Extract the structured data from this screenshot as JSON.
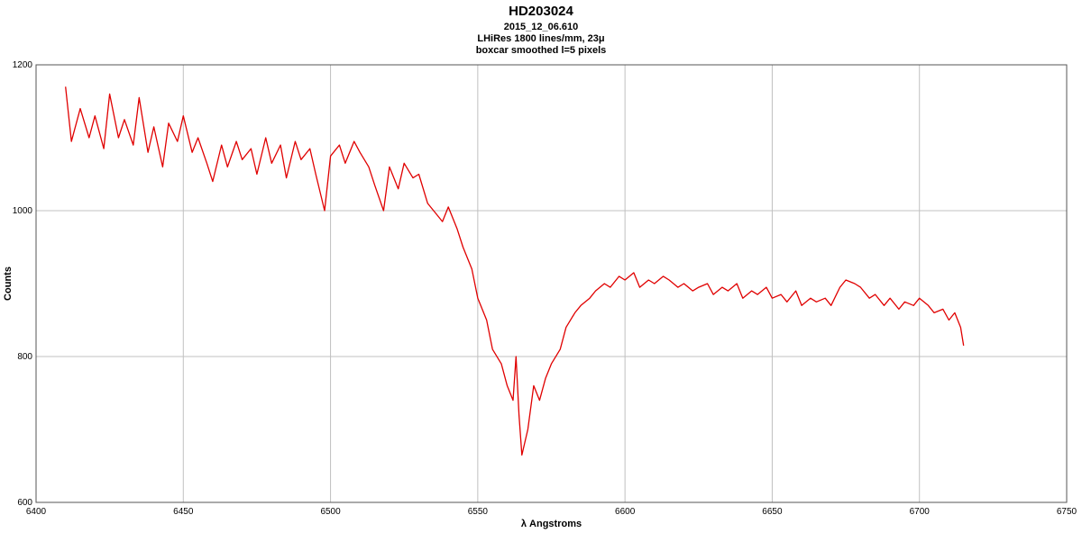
{
  "chart_data": {
    "type": "line",
    "title": "HD203024",
    "subtitle_lines": [
      "2015_12_06.610",
      "LHiRes 1800 lines/mm, 23μ",
      "boxcar smoothed l=5 pixels"
    ],
    "xlabel": "λ Angstroms",
    "ylabel": "Counts",
    "xlim": [
      6400,
      6750
    ],
    "ylim": [
      600,
      1200
    ],
    "xticks": [
      6400,
      6450,
      6500,
      6550,
      6600,
      6650,
      6700,
      6750
    ],
    "yticks": [
      600,
      800,
      1000,
      1200
    ],
    "grid": true,
    "line_color": "#e00000",
    "series": [
      {
        "name": "",
        "x": [
          6410,
          6412,
          6415,
          6418,
          6420,
          6423,
          6425,
          6428,
          6430,
          6433,
          6435,
          6438,
          6440,
          6443,
          6445,
          6448,
          6450,
          6453,
          6455,
          6458,
          6460,
          6463,
          6465,
          6468,
          6470,
          6473,
          6475,
          6478,
          6480,
          6483,
          6485,
          6488,
          6490,
          6493,
          6495,
          6498,
          6500,
          6503,
          6505,
          6508,
          6510,
          6513,
          6515,
          6518,
          6520,
          6523,
          6525,
          6528,
          6530,
          6533,
          6535,
          6538,
          6540,
          6543,
          6545,
          6548,
          6550,
          6553,
          6555,
          6558,
          6560,
          6562,
          6563,
          6564,
          6565,
          6567,
          6569,
          6571,
          6573,
          6575,
          6578,
          6580,
          6583,
          6585,
          6588,
          6590,
          6593,
          6595,
          6598,
          6600,
          6603,
          6605,
          6608,
          6610,
          6613,
          6615,
          6618,
          6620,
          6623,
          6625,
          6628,
          6630,
          6633,
          6635,
          6638,
          6640,
          6643,
          6645,
          6648,
          6650,
          6653,
          6655,
          6658,
          6660,
          6663,
          6665,
          6668,
          6670,
          6673,
          6675,
          6678,
          6680,
          6683,
          6685,
          6688,
          6690,
          6693,
          6695,
          6698,
          6700,
          6703,
          6705,
          6708,
          6710,
          6712,
          6714,
          6715
        ],
        "y": [
          1170,
          1095,
          1140,
          1100,
          1130,
          1085,
          1160,
          1100,
          1125,
          1090,
          1155,
          1080,
          1115,
          1060,
          1120,
          1095,
          1130,
          1080,
          1100,
          1065,
          1040,
          1090,
          1060,
          1095,
          1070,
          1085,
          1050,
          1100,
          1065,
          1090,
          1045,
          1095,
          1070,
          1085,
          1050,
          1000,
          1075,
          1090,
          1065,
          1095,
          1080,
          1060,
          1035,
          1000,
          1060,
          1030,
          1065,
          1045,
          1050,
          1010,
          1000,
          985,
          1005,
          975,
          950,
          920,
          880,
          850,
          810,
          790,
          760,
          740,
          800,
          720,
          665,
          700,
          760,
          740,
          770,
          790,
          810,
          840,
          860,
          870,
          880,
          890,
          900,
          895,
          910,
          905,
          915,
          895,
          905,
          900,
          910,
          905,
          895,
          900,
          890,
          895,
          900,
          885,
          895,
          890,
          900,
          880,
          890,
          885,
          895,
          880,
          885,
          875,
          890,
          870,
          880,
          875,
          880,
          870,
          895,
          905,
          900,
          895,
          880,
          885,
          870,
          880,
          865,
          875,
          870,
          880,
          870,
          860,
          865,
          850,
          860,
          840,
          815
        ]
      }
    ]
  }
}
